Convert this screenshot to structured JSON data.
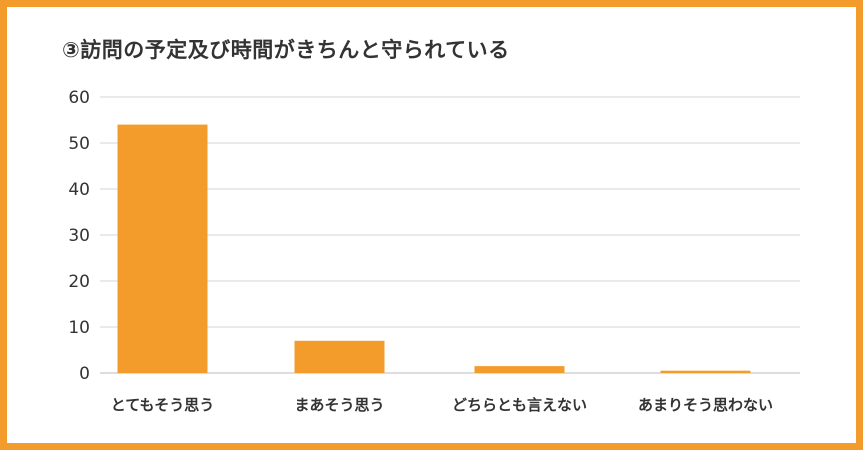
{
  "chart_data": {
    "type": "bar",
    "title": "③訪問の予定及び時間がきちんと守られている",
    "categories": [
      "とてもそう思う",
      "まあそう思う",
      "どちらとも言えない",
      "あまりそう思わない"
    ],
    "values": [
      54,
      7,
      1.5,
      0.5
    ],
    "ylim": [
      0,
      60
    ],
    "yticks": [
      0,
      10,
      20,
      30,
      40,
      50,
      60
    ],
    "xlabel": "",
    "ylabel": "",
    "grid": true,
    "legend": "none",
    "bar_color": "#f39c2c",
    "frame_color": "#f39c2c"
  }
}
